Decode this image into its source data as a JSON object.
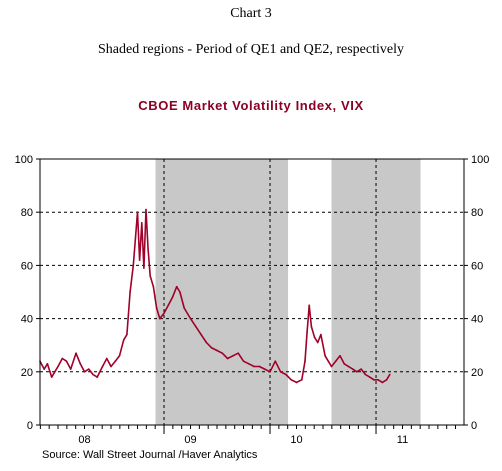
{
  "header": {
    "chart_label": "Chart 3",
    "subtitle": "Shaded regions - Period of QE1 and QE2, respectively",
    "title": "CBOE Market Volatility Index, VIX"
  },
  "footer": {
    "source": "Source:  Wall Street Journal /Haver Analytics"
  },
  "colors": {
    "series": "#a0002a",
    "shade": "#c8c8c8",
    "title": "#8b0024"
  },
  "chart_data": {
    "type": "line",
    "title": "CBOE Market Volatility Index, VIX",
    "xlabel": "",
    "ylabel": "",
    "x_unit": "year",
    "xlim": [
      2007.83,
      2011.83
    ],
    "ylim": [
      0,
      100
    ],
    "y_ticks": [
      0,
      20,
      40,
      60,
      80,
      100
    ],
    "y_tick_labels": [
      "0",
      "20",
      "40",
      "60",
      "80",
      "100"
    ],
    "y_axis_both_sides": true,
    "x_tick_labels": [
      {
        "x": 2008.25,
        "label": "08"
      },
      {
        "x": 2009.25,
        "label": "09"
      },
      {
        "x": 2010.25,
        "label": "10"
      },
      {
        "x": 2011.25,
        "label": "11"
      }
    ],
    "year_boundaries": [
      2009.0,
      2010.0,
      2011.0
    ],
    "grid": {
      "horizontal": true,
      "vertical": true,
      "style": "dashed"
    },
    "shaded_regions": [
      {
        "start": 2008.92,
        "end": 2010.17
      },
      {
        "start": 2010.58,
        "end": 2011.42
      }
    ],
    "series": [
      {
        "values": [
          {
            "x": 2007.83,
            "y": 24
          },
          {
            "x": 2007.87,
            "y": 21
          },
          {
            "x": 2007.9,
            "y": 23
          },
          {
            "x": 2007.94,
            "y": 18
          },
          {
            "x": 2007.97,
            "y": 20
          },
          {
            "x": 2008.0,
            "y": 22
          },
          {
            "x": 2008.04,
            "y": 25
          },
          {
            "x": 2008.08,
            "y": 24
          },
          {
            "x": 2008.12,
            "y": 21
          },
          {
            "x": 2008.17,
            "y": 27
          },
          {
            "x": 2008.21,
            "y": 23
          },
          {
            "x": 2008.25,
            "y": 20
          },
          {
            "x": 2008.29,
            "y": 21
          },
          {
            "x": 2008.33,
            "y": 19
          },
          {
            "x": 2008.37,
            "y": 18
          },
          {
            "x": 2008.42,
            "y": 22
          },
          {
            "x": 2008.46,
            "y": 25
          },
          {
            "x": 2008.5,
            "y": 22
          },
          {
            "x": 2008.54,
            "y": 24
          },
          {
            "x": 2008.58,
            "y": 26
          },
          {
            "x": 2008.62,
            "y": 32
          },
          {
            "x": 2008.65,
            "y": 34
          },
          {
            "x": 2008.68,
            "y": 50
          },
          {
            "x": 2008.71,
            "y": 60
          },
          {
            "x": 2008.73,
            "y": 70
          },
          {
            "x": 2008.75,
            "y": 80
          },
          {
            "x": 2008.77,
            "y": 62
          },
          {
            "x": 2008.79,
            "y": 76
          },
          {
            "x": 2008.81,
            "y": 59
          },
          {
            "x": 2008.83,
            "y": 81
          },
          {
            "x": 2008.85,
            "y": 66
          },
          {
            "x": 2008.87,
            "y": 56
          },
          {
            "x": 2008.9,
            "y": 52
          },
          {
            "x": 2008.93,
            "y": 44
          },
          {
            "x": 2008.96,
            "y": 40
          },
          {
            "x": 2009.0,
            "y": 42
          },
          {
            "x": 2009.04,
            "y": 45
          },
          {
            "x": 2009.08,
            "y": 48
          },
          {
            "x": 2009.12,
            "y": 52
          },
          {
            "x": 2009.15,
            "y": 50
          },
          {
            "x": 2009.19,
            "y": 44
          },
          {
            "x": 2009.25,
            "y": 40
          },
          {
            "x": 2009.3,
            "y": 37
          },
          {
            "x": 2009.35,
            "y": 34
          },
          {
            "x": 2009.4,
            "y": 31
          },
          {
            "x": 2009.45,
            "y": 29
          },
          {
            "x": 2009.5,
            "y": 28
          },
          {
            "x": 2009.55,
            "y": 27
          },
          {
            "x": 2009.6,
            "y": 25
          },
          {
            "x": 2009.65,
            "y": 26
          },
          {
            "x": 2009.7,
            "y": 27
          },
          {
            "x": 2009.75,
            "y": 24
          },
          {
            "x": 2009.8,
            "y": 23
          },
          {
            "x": 2009.85,
            "y": 22
          },
          {
            "x": 2009.9,
            "y": 22
          },
          {
            "x": 2009.95,
            "y": 21
          },
          {
            "x": 2010.0,
            "y": 20
          },
          {
            "x": 2010.05,
            "y": 24
          },
          {
            "x": 2010.1,
            "y": 20
          },
          {
            "x": 2010.15,
            "y": 19
          },
          {
            "x": 2010.2,
            "y": 17
          },
          {
            "x": 2010.25,
            "y": 16
          },
          {
            "x": 2010.3,
            "y": 17
          },
          {
            "x": 2010.33,
            "y": 24
          },
          {
            "x": 2010.35,
            "y": 35
          },
          {
            "x": 2010.37,
            "y": 45
          },
          {
            "x": 2010.39,
            "y": 37
          },
          {
            "x": 2010.42,
            "y": 33
          },
          {
            "x": 2010.45,
            "y": 31
          },
          {
            "x": 2010.48,
            "y": 34
          },
          {
            "x": 2010.52,
            "y": 26
          },
          {
            "x": 2010.55,
            "y": 24
          },
          {
            "x": 2010.58,
            "y": 22
          },
          {
            "x": 2010.62,
            "y": 24
          },
          {
            "x": 2010.66,
            "y": 26
          },
          {
            "x": 2010.7,
            "y": 23
          },
          {
            "x": 2010.74,
            "y": 22
          },
          {
            "x": 2010.78,
            "y": 21
          },
          {
            "x": 2010.82,
            "y": 20
          },
          {
            "x": 2010.86,
            "y": 21
          },
          {
            "x": 2010.9,
            "y": 19
          },
          {
            "x": 2010.94,
            "y": 18
          },
          {
            "x": 2010.98,
            "y": 17
          },
          {
            "x": 2011.02,
            "y": 17
          },
          {
            "x": 2011.06,
            "y": 16
          },
          {
            "x": 2011.1,
            "y": 17
          },
          {
            "x": 2011.13,
            "y": 19
          }
        ]
      }
    ]
  }
}
